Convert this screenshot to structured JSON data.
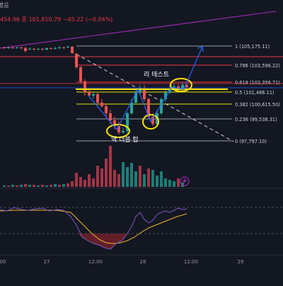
{
  "header": {
    "title_fragment": "봤음",
    "ohlc_fragment": "454.96 종 101,810.79 −45.22 (−0.04%)"
  },
  "colors": {
    "background": "#131722",
    "up": "#26a69a",
    "down": "#ef5350",
    "fib_level": "#9598a1",
    "fib_red": "#f23645",
    "fib_yellow": "#e4e400",
    "highlight_yellow": "#ffe500",
    "trend_purple": "#9c27b0",
    "arrow_blue": "#2962ff",
    "dashed_white": "#d1d4dc",
    "rsi_line": "#7e57c2",
    "rsi_ma": "#f0b429"
  },
  "fib_levels": [
    {
      "ratio": "1",
      "price": "105,175.11",
      "label": "1 (105,175.11)"
    },
    {
      "ratio": "0.786",
      "price": "103,596.22",
      "label": "0.786 (103,596.22)"
    },
    {
      "ratio": "0.618",
      "price": "102,356.71",
      "label": "0.618 (102,356.71)"
    },
    {
      "ratio": "0.5",
      "price": "101,486.11",
      "label": "0.5 (101,486.11)"
    },
    {
      "ratio": "0.382",
      "price": "100,615.50",
      "label": "0.382 (100,615.50)"
    },
    {
      "ratio": "0.236",
      "price": "99,538.31",
      "label": "0.236 (99,538.31)"
    },
    {
      "ratio": "0",
      "price": "97,797.10",
      "label": "0 (97,797.10)"
    }
  ],
  "annotations": {
    "retest": "리 테스트",
    "double_bottom": "역 더블 탑"
  },
  "x_axis_labels": [
    "00",
    "27",
    "12:00",
    "28",
    "12:00",
    "29"
  ],
  "indicator_icon": "lightning-icon"
}
